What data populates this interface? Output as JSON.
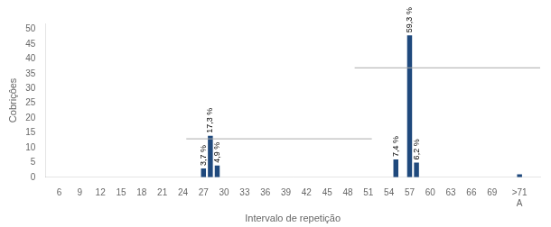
{
  "chart_data": {
    "type": "bar",
    "xlabel": "Intervalo de repetição",
    "ylabel": "Cobriçôes",
    "x": [
      27,
      28,
      29,
      55,
      57,
      58,
      73
    ],
    "values": [
      3,
      14,
      4,
      6,
      48,
      5,
      1
    ],
    "color": "#1F497D",
    "xlim": [
      4,
      76
    ],
    "xticks": [
      6,
      9,
      12,
      15,
      18,
      21,
      24,
      27,
      30,
      33,
      36,
      39,
      42,
      45,
      48,
      51,
      54,
      57,
      60,
      63,
      66,
      69,
      {
        "value": 73,
        "label": ">71\nA"
      }
    ],
    "ylim": [
      0,
      52
    ],
    "yticks": [
      0,
      5,
      10,
      15,
      20,
      25,
      30,
      35,
      40,
      45,
      50
    ],
    "grid": false,
    "annotations": [
      {
        "x": 27,
        "y": 3,
        "text": "3,7 %"
      },
      {
        "x": 28,
        "y": 14,
        "text": "17,3 %"
      },
      {
        "x": 29,
        "y": 4,
        "text": "4,9 %"
      },
      {
        "x": 55,
        "y": 6,
        "text": "7,4 %"
      },
      {
        "x": 57,
        "y": 48,
        "text": "59,3 %"
      },
      {
        "x": 58,
        "y": 5,
        "text": "6,2 %"
      }
    ],
    "hlines": [
      {
        "y": 13,
        "xmin": 24.5,
        "xmax": 51.5,
        "color": "#aaaaaa"
      },
      {
        "y": 37,
        "xmin": 49,
        "xmax": 76,
        "color": "#aaaaaa"
      }
    ]
  }
}
